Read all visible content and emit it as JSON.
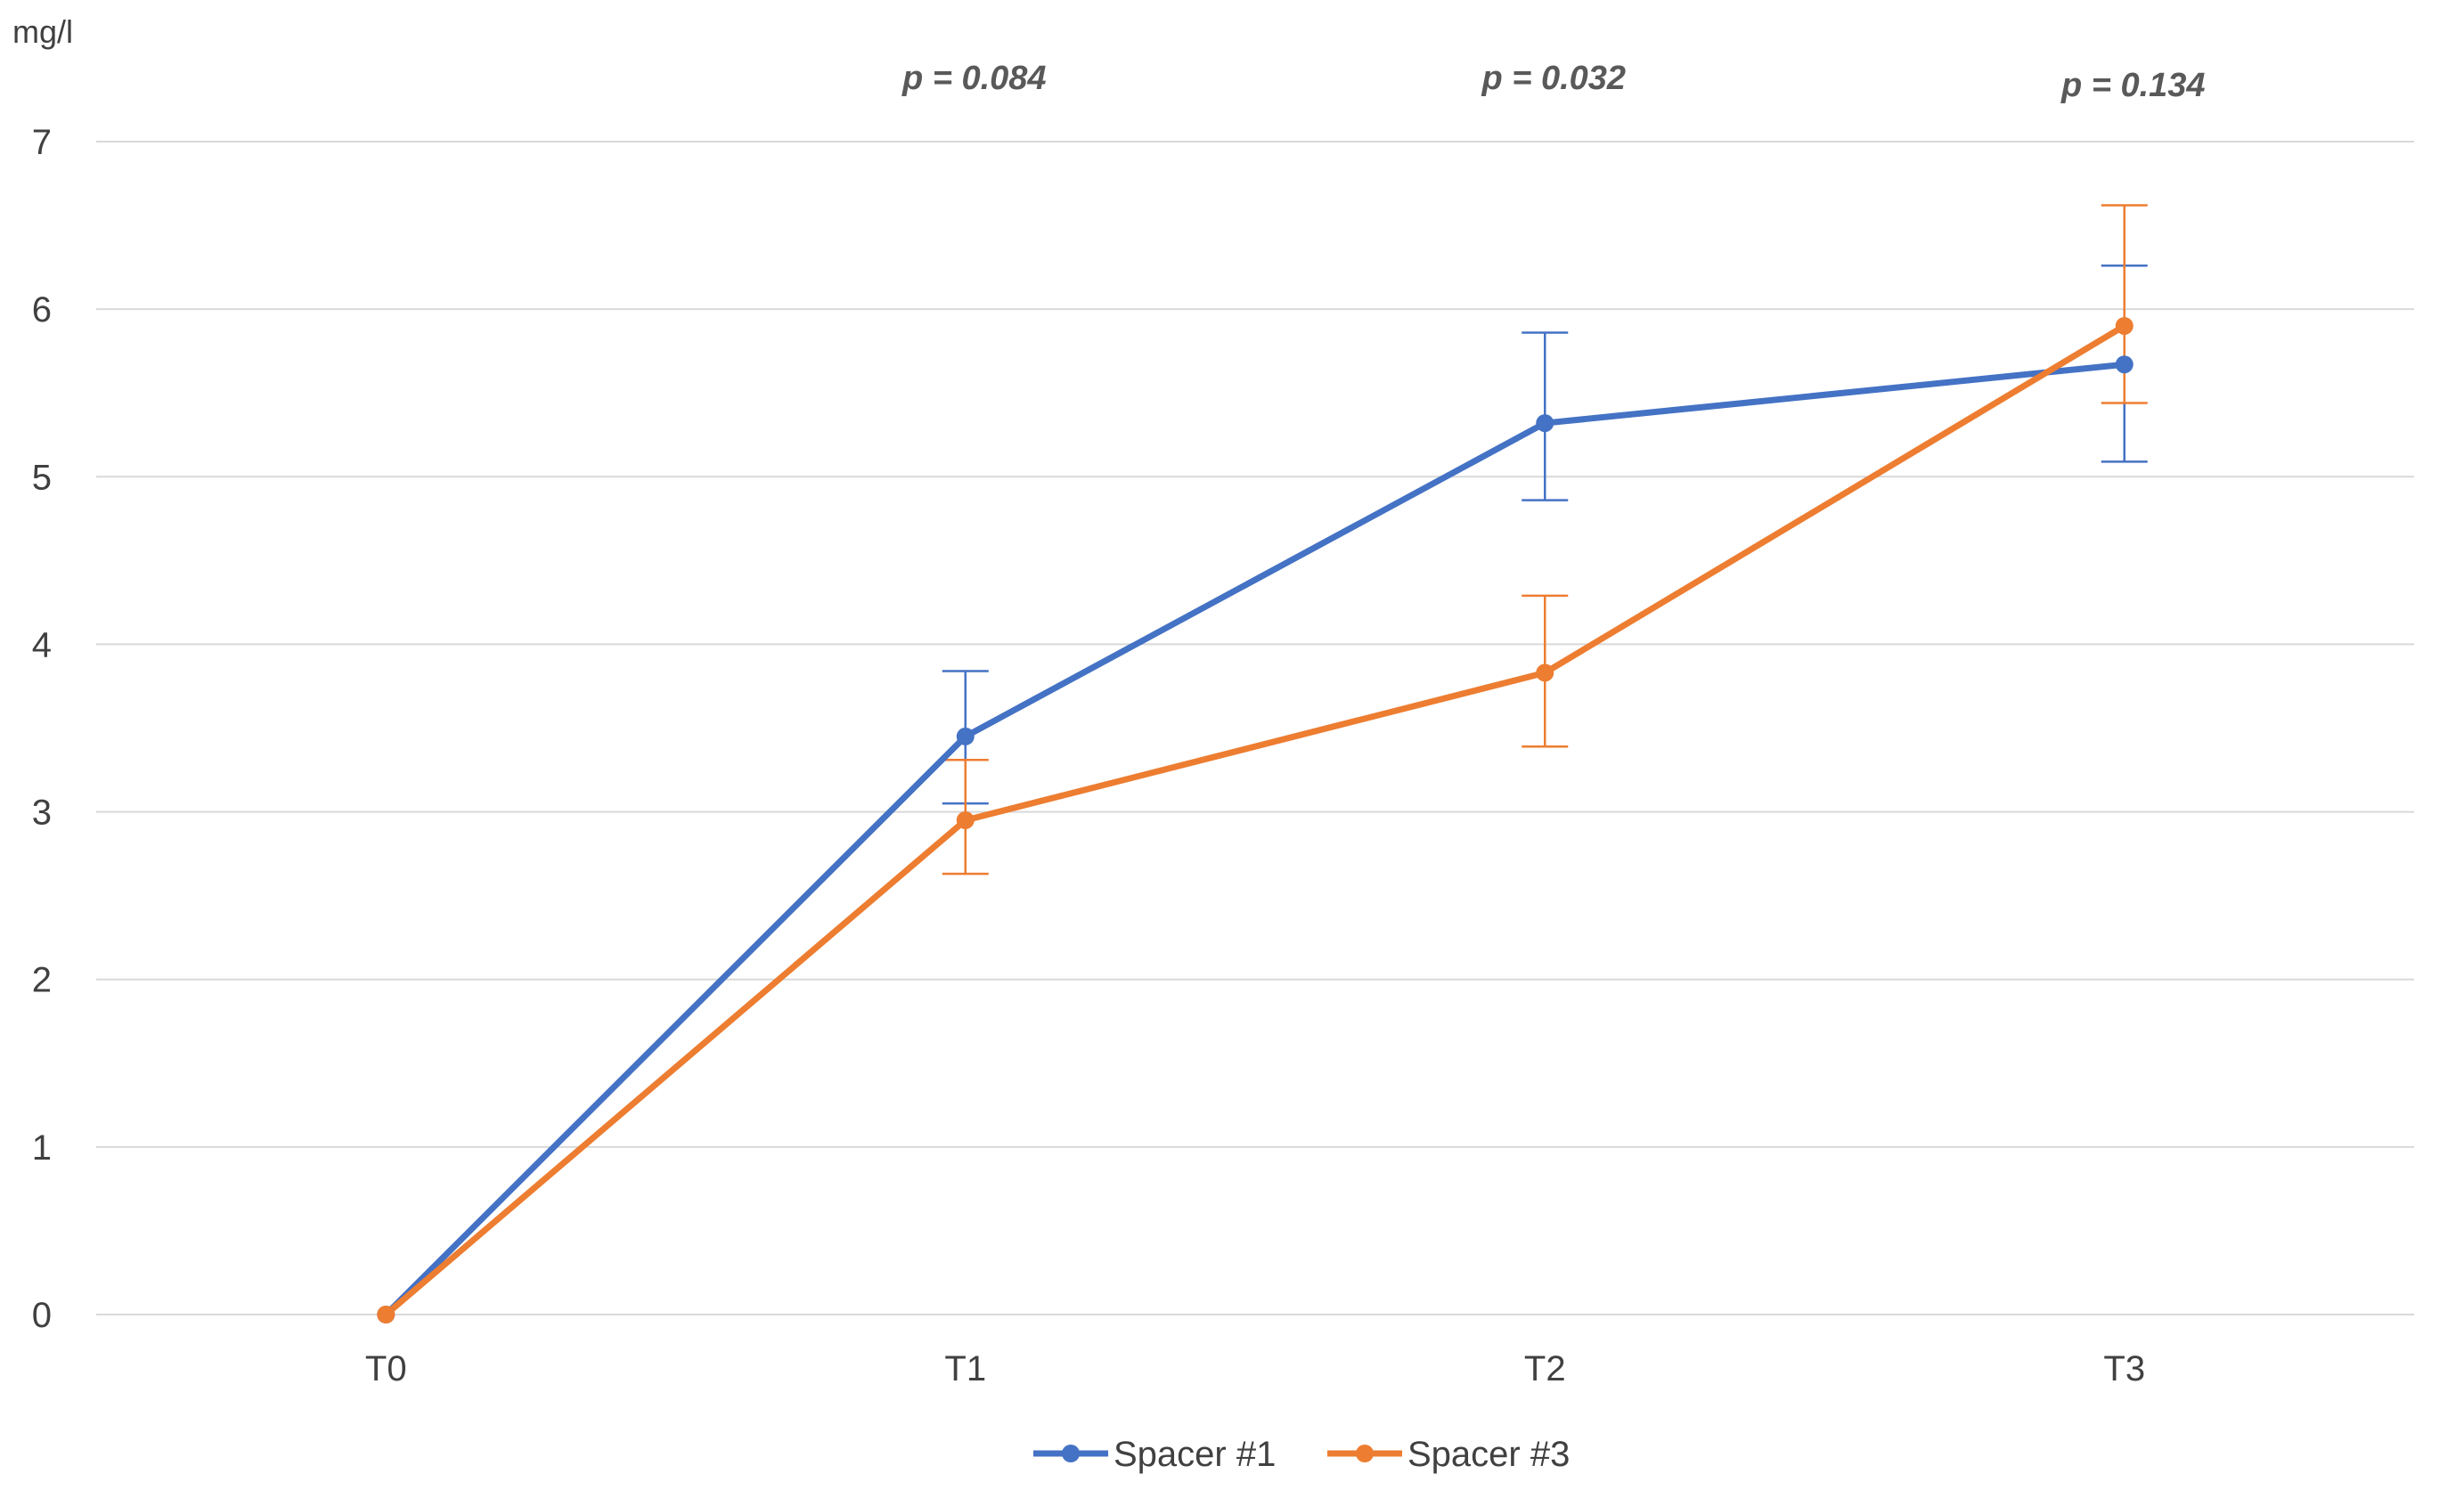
{
  "chart_data": {
    "type": "line",
    "ylabel": "mg/l",
    "xlabel": "",
    "ylim": [
      0,
      7
    ],
    "yticks": [
      0,
      1,
      2,
      3,
      4,
      5,
      6,
      7
    ],
    "categories": [
      "T0",
      "T1",
      "T2",
      "T3"
    ],
    "grid": true,
    "legend_position": "bottom",
    "annotations": [
      {
        "category": "T1",
        "text": "p = 0.084"
      },
      {
        "category": "T2",
        "text": "p = 0.032"
      },
      {
        "category": "T3",
        "text": "p = 0.134"
      }
    ],
    "series": [
      {
        "name": "Spacer #1",
        "color": "#4472c4",
        "values": [
          0,
          3.45,
          5.32,
          5.67
        ],
        "error_low": [
          0,
          3.05,
          4.86,
          5.09
        ],
        "error_high": [
          0,
          3.84,
          5.86,
          6.26
        ]
      },
      {
        "name": "Spacer #3",
        "color": "#ed7d31",
        "values": [
          0,
          2.95,
          3.83,
          5.9
        ],
        "error_low": [
          0,
          2.63,
          3.39,
          5.44
        ],
        "error_high": [
          0,
          3.31,
          4.29,
          6.62
        ]
      }
    ]
  }
}
